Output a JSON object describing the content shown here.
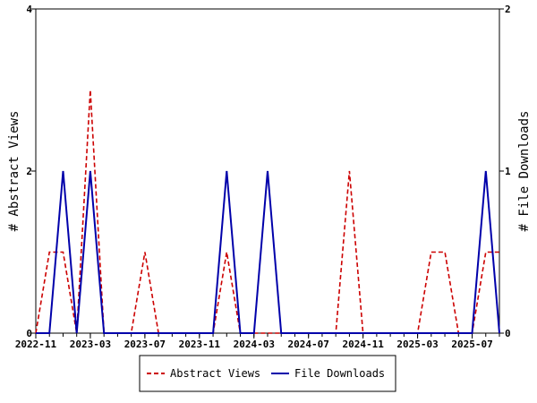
{
  "chart_data": {
    "type": "line",
    "x": [
      "2022-11",
      "2022-12",
      "2023-01",
      "2023-02",
      "2023-03",
      "2023-04",
      "2023-05",
      "2023-06",
      "2023-07",
      "2023-08",
      "2023-09",
      "2023-10",
      "2023-11",
      "2023-12",
      "2024-01",
      "2024-02",
      "2024-03",
      "2024-04",
      "2024-05",
      "2024-06",
      "2024-07",
      "2024-08",
      "2024-09",
      "2024-10",
      "2024-11",
      "2024-12",
      "2025-01",
      "2025-02",
      "2025-03",
      "2025-04",
      "2025-05",
      "2025-06",
      "2025-07",
      "2025-08",
      "2025-09"
    ],
    "x_tick_labels": [
      "2022-11",
      "2023-03",
      "2023-07",
      "2023-11",
      "2024-03",
      "2024-07",
      "2024-11",
      "2025-03",
      "2025-07"
    ],
    "ylabel": "# Abstract Views",
    "y2label": "# File Downloads",
    "ylim": [
      0,
      4
    ],
    "y2lim": [
      0,
      2
    ],
    "y_ticks": [
      "0",
      "2",
      "4"
    ],
    "y2_ticks": [
      "0",
      "1",
      "2"
    ],
    "grid": false,
    "legend_position": "bottom-center",
    "series": [
      {
        "name": "Abstract Views",
        "axis": "left",
        "color": "#cc0000",
        "style": "dashed",
        "values": [
          0,
          1,
          1,
          0,
          3,
          0,
          0,
          0,
          1,
          0,
          0,
          0,
          0,
          0,
          1,
          0,
          0,
          0,
          0,
          0,
          0,
          0,
          0,
          2,
          0,
          0,
          0,
          0,
          0,
          1,
          1,
          0,
          0,
          1,
          1
        ]
      },
      {
        "name": "File Downloads",
        "axis": "right",
        "color": "#0000aa",
        "style": "solid",
        "values": [
          0,
          0,
          1,
          0,
          1,
          0,
          0,
          0,
          0,
          0,
          0,
          0,
          0,
          0,
          1,
          0,
          0,
          1,
          0,
          0,
          0,
          0,
          0,
          0,
          0,
          0,
          0,
          0,
          0,
          0,
          0,
          0,
          0,
          1,
          0
        ]
      }
    ]
  }
}
